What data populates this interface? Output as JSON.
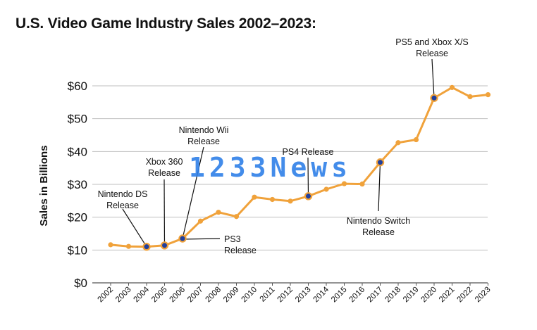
{
  "title": "U.S. Video Game Industry Sales 2002–2023:",
  "watermark": "1233News",
  "colors": {
    "line": "#f0a23b",
    "marker_highlight": "#1f3f9e",
    "grid": "#bfbfbf",
    "axis": "#555555"
  },
  "chart_data": {
    "type": "line",
    "title": "U.S. Video Game Industry Sales 2002–2023:",
    "xlabel": "",
    "ylabel": "Sales in Billions",
    "ylim": [
      0,
      60
    ],
    "yticks": [
      "$0",
      "$10",
      "$20",
      "$30",
      "$40",
      "$50",
      "$60"
    ],
    "grid": true,
    "categories": [
      "2002",
      "2003",
      "2004",
      "2005",
      "2006",
      "2007",
      "2008",
      "2009",
      "2010",
      "2011",
      "2012",
      "2013",
      "2014",
      "2015",
      "2016",
      "2017",
      "2018",
      "2019",
      "2020",
      "2021",
      "2022",
      "2023"
    ],
    "values": [
      11.6,
      11.1,
      11.0,
      11.4,
      13.5,
      18.8,
      21.5,
      20.2,
      26.1,
      25.4,
      24.9,
      26.4,
      28.5,
      30.2,
      30.1,
      36.7,
      42.7,
      43.6,
      56.3,
      59.5,
      56.7,
      57.3
    ],
    "annotations": [
      {
        "year": "2004",
        "text": [
          "Nintendo DS",
          "Release"
        ]
      },
      {
        "year": "2005",
        "text": [
          "Xbox 360",
          "Release"
        ]
      },
      {
        "year": "2006",
        "text": [
          "Nintendo Wii",
          "Release"
        ]
      },
      {
        "year": "2006",
        "text": [
          "PS3",
          "Release"
        ]
      },
      {
        "year": "2013",
        "text": [
          "PS4 Release"
        ]
      },
      {
        "year": "2017",
        "text": [
          "Nintendo Switch",
          "Release"
        ]
      },
      {
        "year": "2020",
        "text": [
          "PS5 and Xbox X/S",
          "Release"
        ]
      }
    ]
  }
}
